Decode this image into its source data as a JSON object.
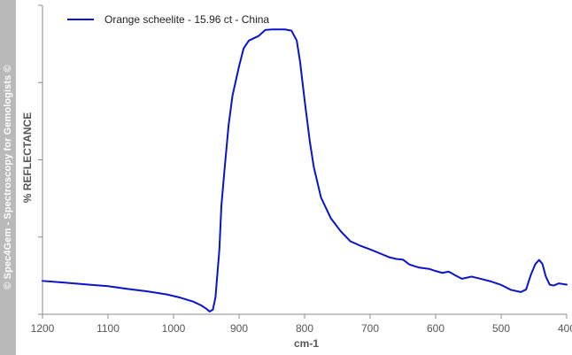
{
  "watermark": "© Spec4Gem - Spectroscopy for Gemologists ©",
  "chart_data": {
    "type": "line",
    "xlabel": "cm-1",
    "ylabel": "% REFLECTANCE",
    "xlim": [
      1200,
      400
    ],
    "x_reversed": true,
    "ylim": [
      0,
      100
    ],
    "x_ticks": [
      1200,
      1100,
      1000,
      900,
      800,
      700,
      600,
      500,
      400
    ],
    "y_tick_marks": [
      0,
      25,
      50,
      75,
      100
    ],
    "y_tick_labels_shown": false,
    "grid": false,
    "legend_position": "top-left",
    "series": [
      {
        "name": "Orange scheelite - 15.96 ct - China",
        "color": "#0a14c8",
        "points": [
          [
            1200,
            10.8
          ],
          [
            1170,
            10.3
          ],
          [
            1130,
            9.6
          ],
          [
            1100,
            9.1
          ],
          [
            1070,
            8.2
          ],
          [
            1040,
            7.4
          ],
          [
            1010,
            6.4
          ],
          [
            990,
            5.4
          ],
          [
            970,
            4.1
          ],
          [
            958,
            2.9
          ],
          [
            950,
            1.8
          ],
          [
            945,
            0.9
          ],
          [
            940,
            1.5
          ],
          [
            936,
            5.5
          ],
          [
            933,
            13.3
          ],
          [
            930,
            21.1
          ],
          [
            927,
            35.1
          ],
          [
            922,
            47.3
          ],
          [
            916,
            61.2
          ],
          [
            910,
            70.8
          ],
          [
            900,
            80.3
          ],
          [
            893,
            86.1
          ],
          [
            885,
            88.6
          ],
          [
            870,
            90.1
          ],
          [
            860,
            92.0
          ],
          [
            850,
            92.2
          ],
          [
            830,
            92.2
          ],
          [
            820,
            91.8
          ],
          [
            812,
            88.6
          ],
          [
            807,
            81.9
          ],
          [
            800,
            69.3
          ],
          [
            792,
            55.9
          ],
          [
            786,
            47.7
          ],
          [
            775,
            37.8
          ],
          [
            760,
            31.1
          ],
          [
            745,
            26.9
          ],
          [
            730,
            23.6
          ],
          [
            715,
            22.2
          ],
          [
            700,
            21.0
          ],
          [
            685,
            19.7
          ],
          [
            670,
            18.4
          ],
          [
            660,
            17.9
          ],
          [
            650,
            17.7
          ],
          [
            640,
            16.1
          ],
          [
            625,
            15.1
          ],
          [
            610,
            14.7
          ],
          [
            600,
            14.0
          ],
          [
            590,
            13.4
          ],
          [
            580,
            13.8
          ],
          [
            570,
            12.6
          ],
          [
            560,
            11.5
          ],
          [
            545,
            12.2
          ],
          [
            530,
            11.4
          ],
          [
            515,
            10.6
          ],
          [
            500,
            9.5
          ],
          [
            485,
            7.9
          ],
          [
            470,
            7.2
          ],
          [
            462,
            8.0
          ],
          [
            455,
            12.6
          ],
          [
            448,
            16.2
          ],
          [
            442,
            17.6
          ],
          [
            437,
            16.3
          ],
          [
            432,
            12.3
          ],
          [
            426,
            9.6
          ],
          [
            420,
            9.3
          ],
          [
            412,
            10.0
          ],
          [
            400,
            9.6
          ]
        ]
      }
    ]
  }
}
